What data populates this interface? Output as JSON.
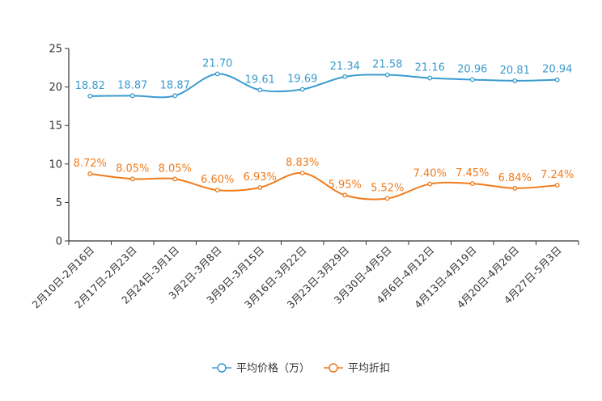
{
  "chart_data": {
    "type": "line",
    "title": "",
    "xlabel": "",
    "ylabel": "",
    "ylim": [
      0,
      25
    ],
    "yticks": [
      0,
      5,
      10,
      15,
      20,
      25
    ],
    "grid": false,
    "legend_position": "bottom-center",
    "categories": [
      "2月10日-2月16日",
      "2月17日-2月23日",
      "2月24日-3月1日",
      "3月2日-3月8日",
      "3月9日-3月15日",
      "3月16日-3月22日",
      "3月23日-3月29日",
      "3月30日-4月5日",
      "4月6日-4月12日",
      "4月13日-4月19日",
      "4月20日-4月26日",
      "4月27日-5月3日"
    ],
    "series": [
      {
        "name": "平均价格（万）",
        "color": "#3a9bd0",
        "values": [
          18.82,
          18.87,
          18.87,
          21.7,
          19.61,
          19.69,
          21.34,
          21.58,
          21.16,
          20.96,
          20.81,
          20.94
        ],
        "labels": [
          "18.82",
          "18.87",
          "18.87",
          "21.70",
          "19.61",
          "19.69",
          "21.34",
          "21.58",
          "21.16",
          "20.96",
          "20.81",
          "20.94"
        ]
      },
      {
        "name": "平均折扣",
        "color": "#f07b1c",
        "values": [
          8.72,
          8.05,
          8.05,
          6.6,
          6.93,
          8.83,
          5.95,
          5.52,
          7.4,
          7.45,
          6.84,
          7.24
        ],
        "labels": [
          "8.72%",
          "8.05%",
          "8.05%",
          "6.60%",
          "6.93%",
          "8.83%",
          "5.95%",
          "5.52%",
          "7.40%",
          "7.45%",
          "6.84%",
          "7.24%"
        ]
      }
    ]
  }
}
